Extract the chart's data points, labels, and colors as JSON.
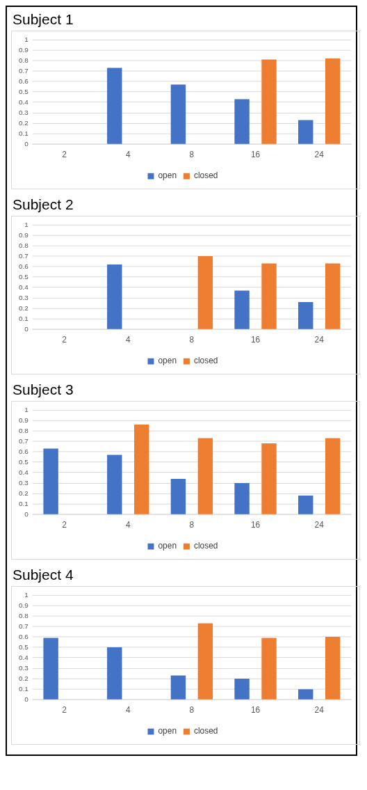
{
  "chart_data": [
    {
      "type": "bar",
      "title": "Subject 1",
      "categories": [
        "2",
        "4",
        "8",
        "16",
        "24"
      ],
      "series": [
        {
          "name": "open",
          "color": "#4472c4",
          "values": [
            null,
            0.73,
            0.57,
            0.43,
            0.23
          ]
        },
        {
          "name": "closed",
          "color": "#ed7d31",
          "values": [
            null,
            null,
            null,
            0.81,
            0.82
          ]
        }
      ],
      "ylim": [
        0,
        1
      ],
      "yticks": [
        0,
        0.1,
        0.2,
        0.3,
        0.4,
        0.5,
        0.6,
        0.7,
        0.8,
        0.9,
        1
      ],
      "grid": "y",
      "legend": "bottom"
    },
    {
      "type": "bar",
      "title": "Subject 2",
      "categories": [
        "2",
        "4",
        "8",
        "16",
        "24"
      ],
      "series": [
        {
          "name": "open",
          "color": "#4472c4",
          "values": [
            null,
            0.62,
            null,
            0.37,
            0.26
          ]
        },
        {
          "name": "closed",
          "color": "#ed7d31",
          "values": [
            null,
            null,
            0.7,
            0.63,
            0.63
          ]
        }
      ],
      "ylim": [
        0,
        1
      ],
      "yticks": [
        0,
        0.1,
        0.2,
        0.3,
        0.4,
        0.5,
        0.6,
        0.7,
        0.8,
        0.9,
        1
      ],
      "grid": "y",
      "legend": "bottom"
    },
    {
      "type": "bar",
      "title": "Subject 3",
      "categories": [
        "2",
        "4",
        "8",
        "16",
        "24"
      ],
      "series": [
        {
          "name": "open",
          "color": "#4472c4",
          "values": [
            0.63,
            0.57,
            0.34,
            0.3,
            0.18
          ]
        },
        {
          "name": "closed",
          "color": "#ed7d31",
          "values": [
            null,
            0.86,
            0.73,
            0.68,
            0.73
          ]
        }
      ],
      "ylim": [
        0,
        1
      ],
      "yticks": [
        0,
        0.1,
        0.2,
        0.3,
        0.4,
        0.5,
        0.6,
        0.7,
        0.8,
        0.9,
        1
      ],
      "grid": "y",
      "legend": "bottom"
    },
    {
      "type": "bar",
      "title": "Subject 4",
      "categories": [
        "2",
        "4",
        "8",
        "16",
        "24"
      ],
      "series": [
        {
          "name": "open",
          "color": "#4472c4",
          "values": [
            0.59,
            0.5,
            0.23,
            0.2,
            0.1
          ]
        },
        {
          "name": "closed",
          "color": "#ed7d31",
          "values": [
            null,
            null,
            0.73,
            0.59,
            0.6
          ]
        }
      ],
      "ylim": [
        0,
        1
      ],
      "yticks": [
        0,
        0.1,
        0.2,
        0.3,
        0.4,
        0.5,
        0.6,
        0.7,
        0.8,
        0.9,
        1
      ],
      "grid": "y",
      "legend": "bottom"
    }
  ]
}
